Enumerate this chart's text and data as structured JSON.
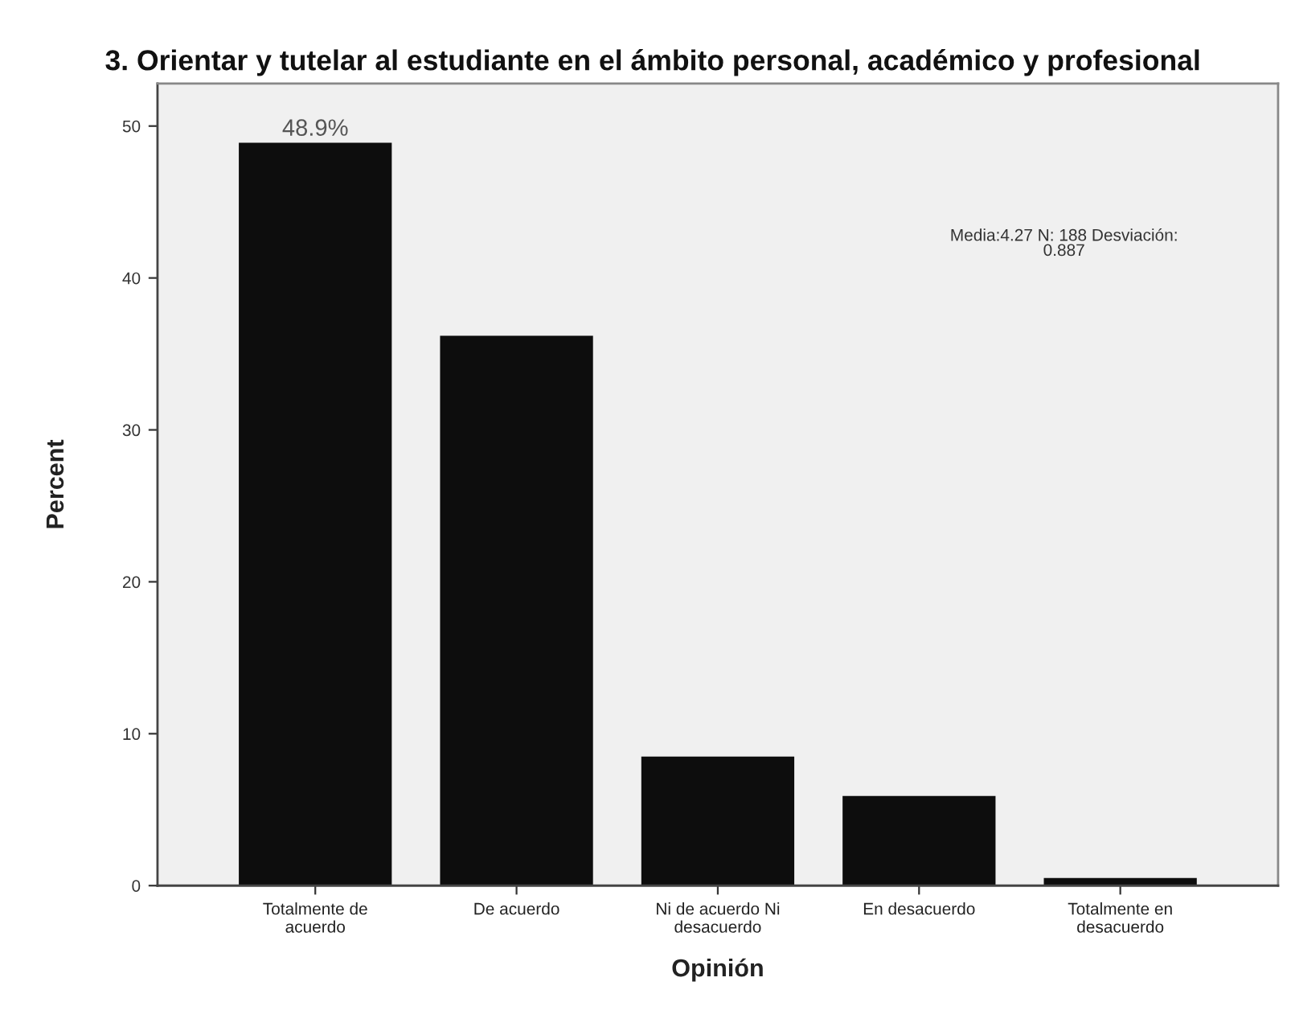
{
  "chart_data": {
    "type": "bar",
    "title": "3. Orientar y tutelar al estudiante en el ámbito personal, académico y profesional",
    "xlabel": "Opinión",
    "ylabel": "Percent",
    "categories": [
      "Totalmente de\nacuerdo",
      "De acuerdo",
      "Ni de acuerdo Ni\ndesacuerdo",
      "En desacuerdo",
      "Totalmente en\ndesacuerdo"
    ],
    "values": [
      48.9,
      36.2,
      8.5,
      5.9,
      0.5
    ],
    "value_labels": [
      "48.9%",
      null,
      null,
      null,
      null
    ],
    "color": "#0d0d0d",
    "ylim": [
      0,
      52.8
    ],
    "yticks": [
      0,
      10,
      20,
      30,
      40,
      50
    ],
    "grid": false,
    "legend": false,
    "annotations": [
      "Media:4.27 N: 188 Desviación:\n0.887"
    ]
  }
}
